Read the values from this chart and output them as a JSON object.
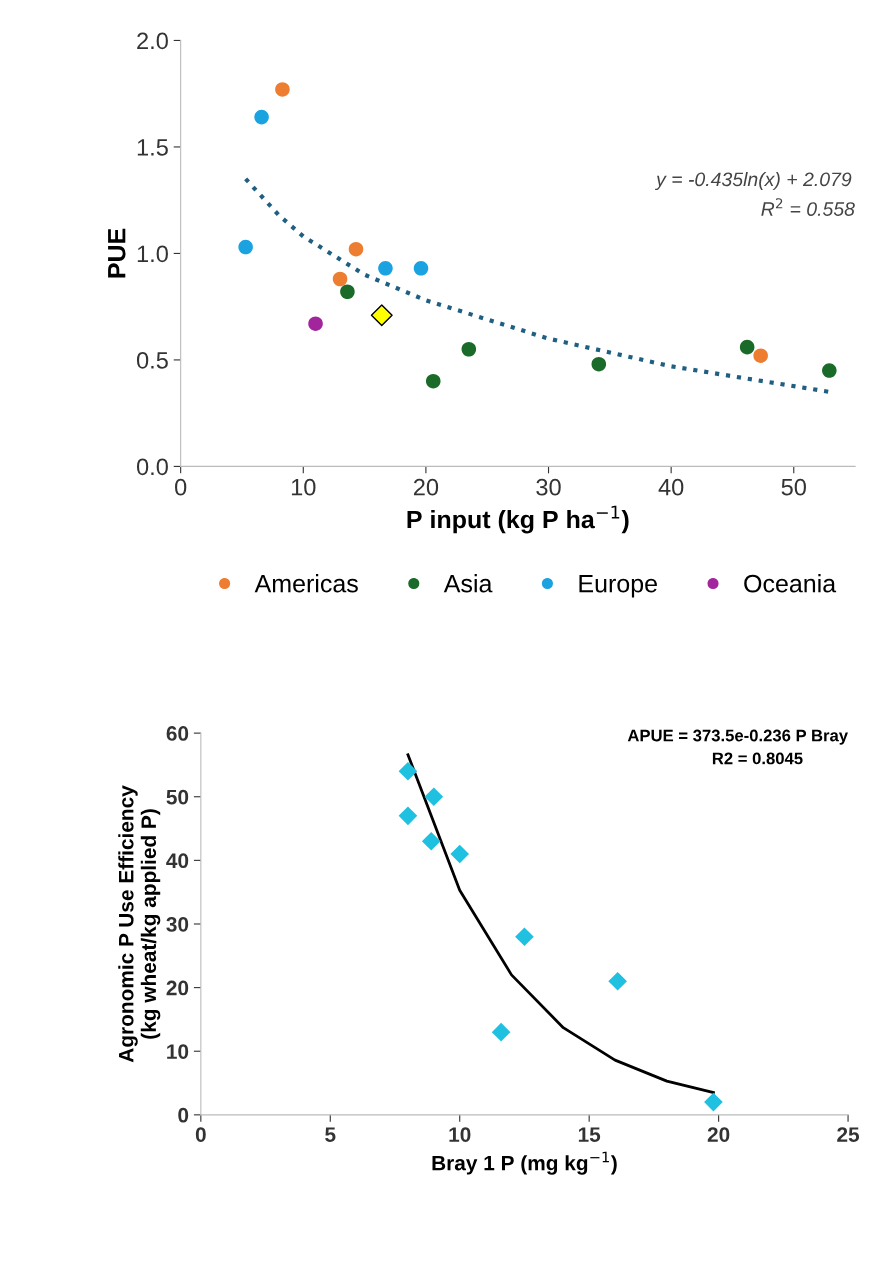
{
  "chart_data": [
    {
      "type": "scatter",
      "xlabel": "P input (kg P ha$^{−1}$)",
      "ylabel": "PUE",
      "xlim": [
        0,
        55
      ],
      "xticks": [
        0,
        10,
        20,
        30,
        40,
        50
      ],
      "ylim": [
        0,
        2.0
      ],
      "yticks": [
        {
          "value": 0,
          "label": "0.0"
        },
        {
          "value": 0.5,
          "label": "0.5"
        },
        {
          "value": 1.0,
          "label": "1.0"
        },
        {
          "value": 1.5,
          "label": "1.5"
        },
        {
          "value": 2.0,
          "label": "2.0"
        }
      ],
      "grid": false,
      "legend": "bottom",
      "marker": "circle",
      "annotations": [
        "y = -0.435ln(x) + 2.079",
        "R$^{2}$ = 0.558"
      ],
      "series": [
        {
          "name": "Americas",
          "color": "#ed7d31",
          "x": [
            8.3,
            14.3,
            13.0,
            47.3
          ],
          "values": [
            1.77,
            1.02,
            0.88,
            0.52
          ]
        },
        {
          "name": "Asia",
          "color": "#1a6b2a",
          "x": [
            13.6,
            20.6,
            23.5,
            34.1,
            46.2,
            52.9
          ],
          "values": [
            0.82,
            0.4,
            0.55,
            0.48,
            0.56,
            0.45
          ]
        },
        {
          "name": "Europe",
          "color": "#1aa3e0",
          "x": [
            5.3,
            6.6,
            16.7,
            19.6
          ],
          "values": [
            1.03,
            1.64,
            0.93,
            0.93
          ]
        },
        {
          "name": "Oceania",
          "color": "#a3259e",
          "x": [
            11.0
          ],
          "values": [
            0.67
          ]
        },
        {
          "color": "#ffff00",
          "marker": "diamond",
          "x": [
            16.4
          ],
          "values": [
            0.71
          ]
        },
        {
          "type": "line",
          "color": "#1f5f82",
          "line_style": "dotted",
          "marker": "none",
          "x": [
            5.3,
            8,
            10,
            15,
            20,
            30,
            40,
            52.9
          ],
          "values": [
            1.35,
            1.18,
            1.08,
            0.9,
            0.78,
            0.6,
            0.47,
            0.35
          ]
        }
      ]
    },
    {
      "type": "scatter",
      "xlabel": "Bray 1 P (mg kg$^{−1}$)",
      "ylabel": "Agronomic P Use Efficiency\n(kg wheat/kg applied P)",
      "xlim": [
        0,
        25
      ],
      "xticks": [
        0,
        5,
        10,
        15,
        20,
        25
      ],
      "ylim": [
        0,
        60
      ],
      "yticks": [
        0,
        10,
        20,
        30,
        40,
        50,
        60
      ],
      "grid": false,
      "marker": "diamond",
      "annotations": [
        "APUE = 373.5e-0.236 P Bray",
        "R2 = 0.8045"
      ],
      "series": [
        {
          "color": "#1fc0e0",
          "x": [
            8.0,
            8.0,
            9.0,
            8.9,
            10.0,
            12.5,
            11.6,
            16.1,
            19.8
          ],
          "values": [
            54,
            47,
            50,
            43,
            41,
            28,
            13,
            21,
            2
          ]
        },
        {
          "type": "line",
          "color": "#000000",
          "line_style": "solid",
          "marker": "none",
          "x": [
            8,
            10,
            12,
            14,
            16,
            18,
            19.8
          ],
          "values": [
            56.6,
            35.3,
            22.0,
            13.7,
            8.6,
            5.3,
            3.5
          ]
        }
      ]
    }
  ]
}
